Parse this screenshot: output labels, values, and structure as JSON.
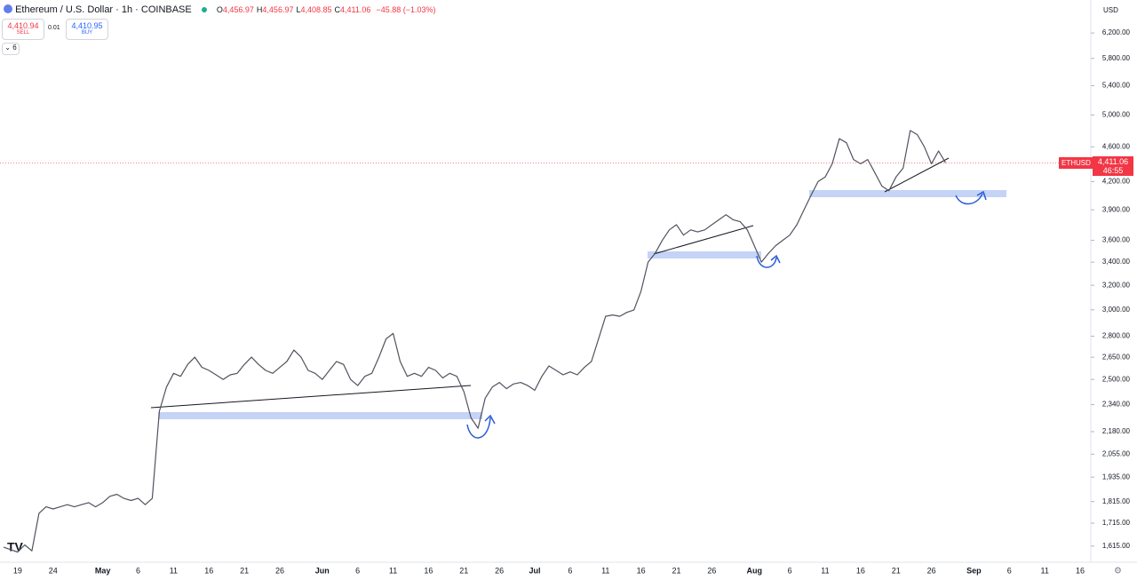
{
  "header": {
    "symbol": "Ethereum / U.S. Dollar · 1h · COINBASE",
    "ohlc": [
      {
        "key": "O",
        "value": "4,456.97"
      },
      {
        "key": "H",
        "value": "4,456.97"
      },
      {
        "key": "L",
        "value": "4,408.85"
      },
      {
        "key": "C",
        "value": "4,411.06"
      }
    ],
    "change": "−45.88 (−1.03%)",
    "sell": {
      "price": "4,410.94",
      "label": "SELL"
    },
    "spread": "0.01",
    "buy": {
      "price": "4,410.95",
      "label": "BUY"
    },
    "indicators": "6",
    "currency": "USD",
    "last_price": {
      "symbol": "ETHUSD",
      "price": "4,411.06",
      "countdown": "46:55"
    }
  },
  "chart_data": {
    "type": "line",
    "log_scale": true,
    "categories": [
      null,
      null,
      "19",
      null,
      null,
      null,
      null,
      "24",
      null,
      null,
      null,
      null,
      null,
      null,
      "May",
      null,
      null,
      null,
      null,
      "6",
      null,
      null,
      null,
      null,
      "11",
      null,
      null,
      null,
      null,
      "16",
      null,
      null,
      null,
      null,
      "21",
      null,
      null,
      null,
      null,
      "26",
      null,
      null,
      null,
      null,
      null,
      "Jun",
      null,
      null,
      null,
      null,
      "6",
      null,
      null,
      null,
      null,
      "11",
      null,
      null,
      null,
      null,
      "16",
      null,
      null,
      null,
      null,
      "21",
      null,
      null,
      null,
      null,
      "26",
      null,
      null,
      null,
      null,
      "Jul",
      null,
      null,
      null,
      null,
      "6",
      null,
      null,
      null,
      null,
      "11",
      null,
      null,
      null,
      null,
      "16",
      null,
      null,
      null,
      null,
      "21",
      null,
      null,
      null,
      null,
      "26",
      null,
      null,
      null,
      null,
      null,
      "Aug",
      null,
      null,
      null,
      null,
      "6",
      null,
      null,
      null,
      null,
      "11",
      null,
      null,
      null,
      null,
      "16",
      null,
      null,
      null,
      null,
      "21",
      null,
      null,
      null,
      null,
      "26",
      null,
      null,
      null,
      null,
      null,
      "Sep",
      null,
      null,
      null,
      null,
      "6",
      null,
      null,
      null,
      null,
      "11",
      null,
      null,
      null,
      null,
      "16",
      null
    ],
    "series": [
      {
        "name": "ETHUSD",
        "color": "#50535e",
        "values": [
          1610,
          1600,
          1590,
          1620,
          1595,
          1760,
          1790,
          1780,
          1790,
          1800,
          1790,
          1800,
          1810,
          1790,
          1810,
          1840,
          1850,
          1830,
          1820,
          1830,
          1800,
          1830,
          2300,
          2450,
          2540,
          2520,
          2600,
          2650,
          2580,
          2560,
          2530,
          2500,
          2530,
          2540,
          2600,
          2650,
          2600,
          2560,
          2540,
          2580,
          2620,
          2700,
          2650,
          2560,
          2540,
          2500,
          2560,
          2620,
          2600,
          2500,
          2460,
          2520,
          2540,
          2650,
          2780,
          2820,
          2620,
          2520,
          2540,
          2520,
          2580,
          2560,
          2510,
          2540,
          2520,
          2420,
          2260,
          2200,
          2380,
          2450,
          2480,
          2440,
          2470,
          2480,
          2460,
          2430,
          2520,
          2590,
          2560,
          2530,
          2550,
          2530,
          2580,
          2620,
          2780,
          2950,
          2960,
          2950,
          2980,
          3000,
          3150,
          3400,
          3480,
          3600,
          3700,
          3750,
          3650,
          3700,
          3680,
          3700,
          3750,
          3800,
          3850,
          3800,
          3780,
          3700,
          3550,
          3400,
          3480,
          3550,
          3600,
          3650,
          3750,
          3900,
          4050,
          4200,
          4250,
          4400,
          4700,
          4650,
          4450,
          4400,
          4450,
          4300,
          4150,
          4100,
          4250,
          4350,
          4800,
          4750,
          4600,
          4400,
          4550,
          4411.06,
          null,
          null,
          null,
          null,
          null,
          null,
          null,
          null,
          null,
          null,
          null,
          null,
          null,
          null,
          null,
          null,
          null,
          null,
          null,
          null
        ]
      }
    ],
    "ylim": [
      1548,
      6760
    ],
    "yticks": [
      {
        "value": 1615,
        "label": "1,615.00"
      },
      {
        "value": 1715,
        "label": "1,715.00"
      },
      {
        "value": 1815,
        "label": "1,815.00"
      },
      {
        "value": 1935,
        "label": "1,935.00"
      },
      {
        "value": 2055,
        "label": "2,055.00"
      },
      {
        "value": 2180,
        "label": "2,180.00"
      },
      {
        "value": 2340,
        "label": "2,340.00"
      },
      {
        "value": 2500,
        "label": "2,500.00"
      },
      {
        "value": 2650,
        "label": "2,650.00"
      },
      {
        "value": 2800,
        "label": "2,800.00"
      },
      {
        "value": 3000,
        "label": "3,000.00"
      },
      {
        "value": 3200,
        "label": "3,200.00"
      },
      {
        "value": 3400,
        "label": "3,400.00"
      },
      {
        "value": 3600,
        "label": "3,600.00"
      },
      {
        "value": 3900,
        "label": "3,900.00"
      },
      {
        "value": 4200,
        "label": "4,200.00"
      },
      {
        "value": 4600,
        "label": "4,600.00"
      },
      {
        "value": 5000,
        "label": "5,000.00"
      },
      {
        "value": 5400,
        "label": "5,400.00"
      },
      {
        "value": 5800,
        "label": "5,800.00"
      },
      {
        "value": 6200,
        "label": "6,200.00"
      }
    ],
    "grid": false
  }
}
